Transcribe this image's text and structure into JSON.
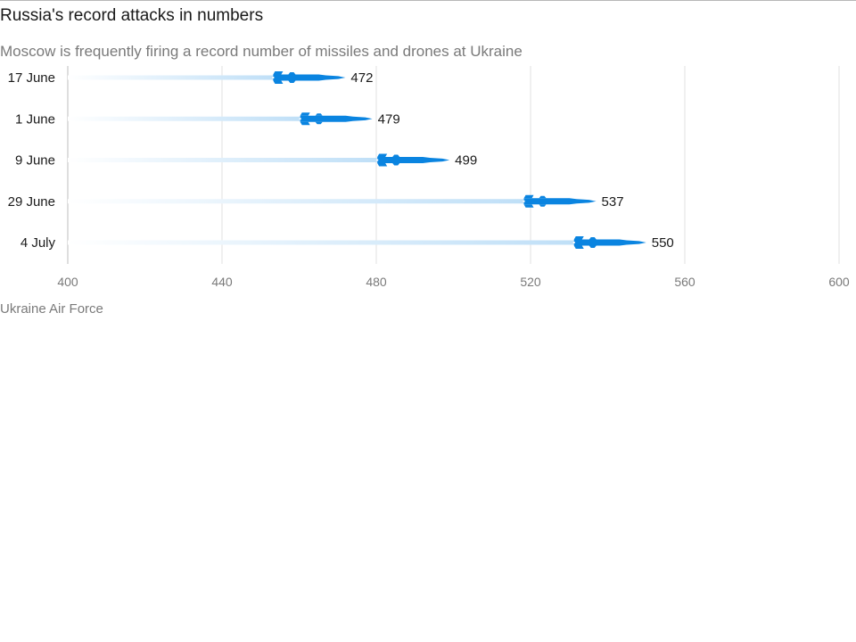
{
  "title": "Russia's record attacks in numbers",
  "subtitle": "Moscow is frequently firing a record number of missiles and drones at Ukraine",
  "source": "Ukraine Air Force",
  "colors": {
    "missile": "#0a84e0",
    "trail": "#cfe6f8",
    "grid": "#e2e2e2",
    "axis": "#bdbdbd"
  },
  "chart_data": {
    "type": "bar",
    "title": "Russia's record attacks in numbers",
    "subtitle": "Moscow is frequently firing a record number of missiles and drones at Ukraine",
    "categories": [
      "17 June",
      "1 June",
      "9 June",
      "29 June",
      "4 July"
    ],
    "values": [
      472,
      479,
      499,
      537,
      550
    ],
    "value_labels": [
      "472",
      "479",
      "499",
      "537",
      "550"
    ],
    "xlim": [
      400,
      600
    ],
    "xticks": [
      400,
      440,
      480,
      520,
      560,
      600
    ],
    "xtick_labels": [
      "400",
      "440",
      "480",
      "520",
      "560",
      "600"
    ],
    "xlabel": "",
    "ylabel": "",
    "grid": true,
    "marker": "missile-icon"
  }
}
